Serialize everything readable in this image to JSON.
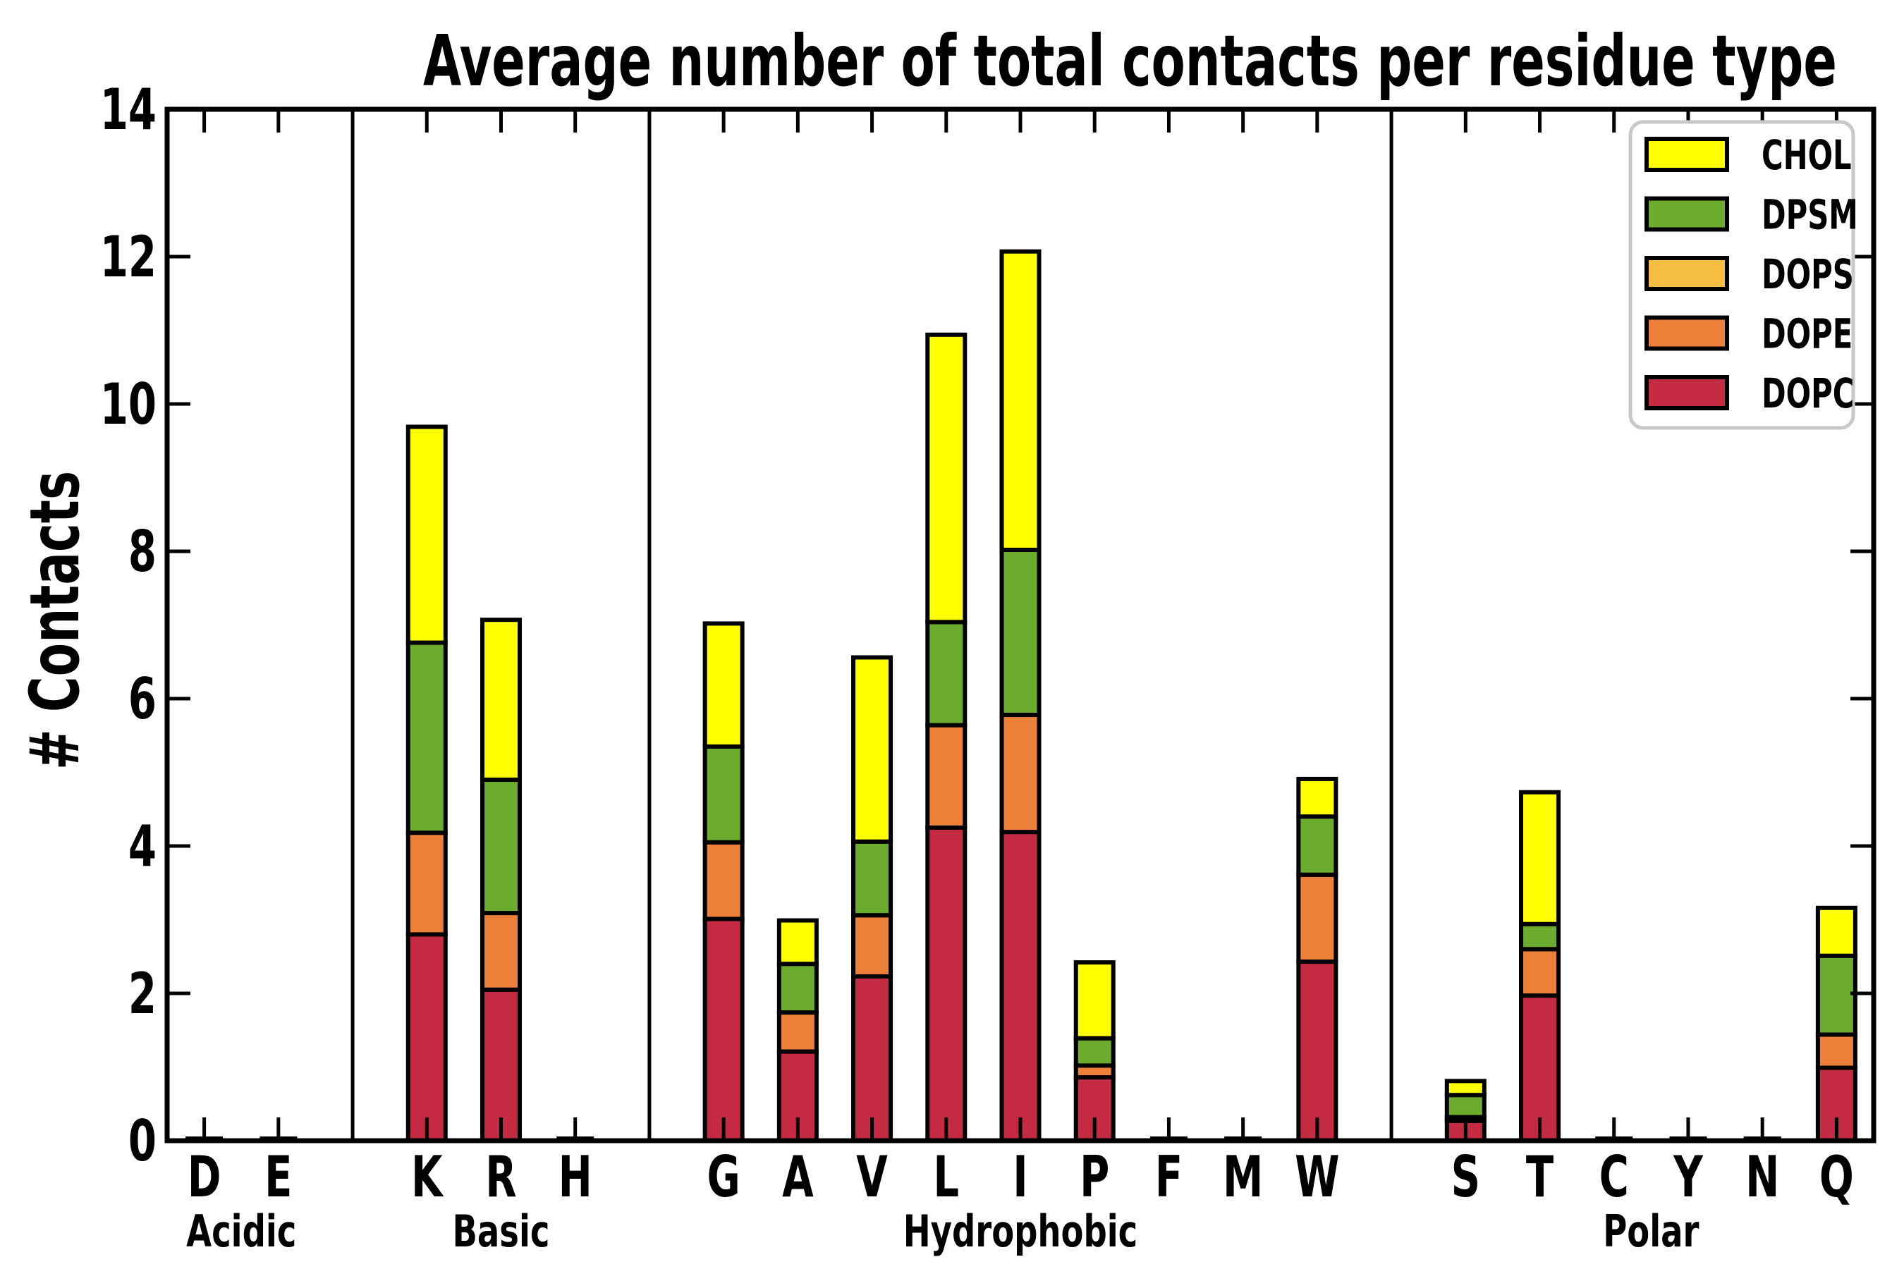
{
  "chart_data": {
    "type": "stacked_bar",
    "title": "Average number of total contacts per residue type",
    "ylabel": "# Contacts",
    "xlabel": "",
    "ylim": [
      0,
      14
    ],
    "yticks": [
      0,
      2,
      4,
      6,
      8,
      10,
      12,
      14
    ],
    "grid": false,
    "tick_style": "inward ticks on all four sides, group separator lines inside plot",
    "background_color": "#ffffff",
    "axis_color": "#000000",
    "groups": [
      {
        "label": "Acidic",
        "categories": [
          "D",
          "E"
        ]
      },
      {
        "label": "Basic",
        "categories": [
          "K",
          "R",
          "H"
        ]
      },
      {
        "label": "Hydrophobic",
        "categories": [
          "G",
          "A",
          "V",
          "L",
          "I",
          "P",
          "F",
          "M",
          "W"
        ]
      },
      {
        "label": "Polar",
        "categories": [
          "S",
          "T",
          "C",
          "Y",
          "N",
          "Q"
        ]
      }
    ],
    "categories": [
      "D",
      "E",
      "K",
      "R",
      "H",
      "G",
      "A",
      "V",
      "L",
      "I",
      "P",
      "F",
      "M",
      "W",
      "S",
      "T",
      "C",
      "Y",
      "N",
      "Q"
    ],
    "zero_trace_categories": [
      "D",
      "E",
      "H",
      "F",
      "M",
      "C",
      "Y",
      "N"
    ],
    "series": [
      {
        "name": "DOPC",
        "color": "#C42A42",
        "values": [
          0,
          0,
          2.8,
          2.05,
          0,
          3.01,
          1.21,
          2.23,
          4.25,
          4.19,
          0.86,
          0,
          0,
          2.43,
          0.27,
          1.97,
          0,
          0,
          0,
          0.99
        ]
      },
      {
        "name": "DOPE",
        "color": "#ED8039",
        "values": [
          0,
          0,
          1.38,
          1.04,
          0,
          1.04,
          0.53,
          0.83,
          1.39,
          1.59,
          0.16,
          0,
          0,
          1.18,
          0.05,
          0.63,
          0,
          0,
          0,
          0.45
        ]
      },
      {
        "name": "DOPS",
        "color": "#F5BE41",
        "values": [
          0,
          0,
          0,
          0,
          0,
          0,
          0,
          0,
          0,
          0,
          0,
          0,
          0,
          0,
          0,
          0,
          0,
          0,
          0,
          0
        ]
      },
      {
        "name": "DPSM",
        "color": "#6BAB2D",
        "values": [
          0,
          0,
          2.58,
          1.81,
          0,
          1.3,
          0.66,
          1.0,
          1.4,
          2.24,
          0.37,
          0,
          0,
          0.79,
          0.3,
          0.34,
          0,
          0,
          0,
          1.07
        ]
      },
      {
        "name": "CHOL",
        "color": "#FFFF00",
        "values": [
          0,
          0,
          2.93,
          2.17,
          0,
          1.67,
          0.59,
          2.5,
          3.9,
          4.05,
          1.03,
          0,
          0,
          0.51,
          0.19,
          1.79,
          0,
          0,
          0,
          0.65
        ]
      }
    ],
    "totals": {
      "K": 9.69,
      "R": 7.07,
      "G": 7.02,
      "A": 2.99,
      "V": 6.56,
      "L": 10.94,
      "I": 12.07,
      "P": 2.42,
      "W": 4.91,
      "S": 0.81,
      "T": 4.73,
      "Q": 3.16
    },
    "legend": {
      "position": "upper right",
      "entries_top_to_bottom": [
        "CHOL",
        "DPSM",
        "DOPS",
        "DOPE",
        "DOPC"
      ],
      "border_color": "#C8C8C8"
    }
  }
}
